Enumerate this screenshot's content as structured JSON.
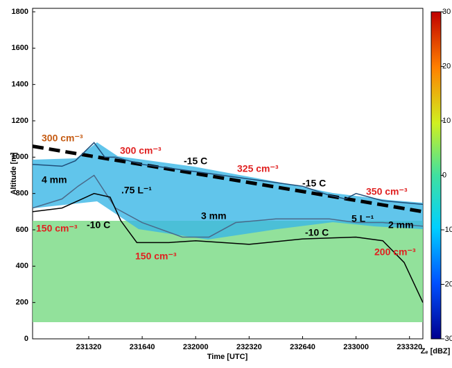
{
  "chart_data": {
    "type": "line",
    "ylabel": "Altitude [m]",
    "xlabel": "Time [UTC]",
    "ylim": [
      0,
      1800
    ],
    "yticks": [
      0,
      200,
      400,
      600,
      800,
      1000,
      1200,
      1400,
      1600,
      1800
    ],
    "xlim": [
      83390,
      84850
    ],
    "xticks": [
      {
        "value": 83600,
        "label": "231320"
      },
      {
        "value": 83800,
        "label": "231640"
      },
      {
        "value": 84000,
        "label": "232000"
      },
      {
        "value": 84200,
        "label": "232320"
      },
      {
        "value": 84400,
        "label": "232640"
      },
      {
        "value": 84600,
        "label": "233000"
      },
      {
        "value": 84800,
        "label": "233320"
      }
    ],
    "series": [
      {
        "color": "#000000",
        "dash": true,
        "x": [
          83390,
          84850
        ],
        "values": [
          1060,
          700
        ]
      },
      {
        "color": "#1f4e79",
        "dash": false,
        "x": [
          83390,
          83500,
          83550,
          83620,
          83660,
          83700,
          83800,
          84000,
          84200,
          84400,
          84500,
          84560,
          84600,
          84700,
          84850
        ],
        "values": [
          960,
          950,
          980,
          1080,
          1000,
          1000,
          960,
          920,
          880,
          840,
          790,
          770,
          800,
          760,
          740
        ]
      },
      {
        "color": "#4a6a8a",
        "dash": false,
        "x": [
          83390,
          83500,
          83560,
          83620,
          83700,
          83800,
          83950,
          84050,
          84150,
          84300,
          84500,
          84600,
          84700,
          84850
        ],
        "values": [
          720,
          770,
          840,
          900,
          720,
          640,
          560,
          560,
          640,
          660,
          660,
          640,
          640,
          620
        ]
      },
      {
        "color": "#000000",
        "dash": false,
        "x": [
          83390,
          83500,
          83560,
          83620,
          83680,
          83720,
          83780,
          83900,
          84000,
          84200,
          84400,
          84600,
          84700,
          84780,
          84850
        ],
        "values": [
          700,
          720,
          760,
          800,
          780,
          650,
          530,
          530,
          540,
          520,
          550,
          560,
          540,
          420,
          200
        ]
      }
    ],
    "colorbar": {
      "label": "Zₑ [dBZ]",
      "lim": [
        -30,
        30
      ],
      "ticks": [
        -30,
        -20,
        -10,
        0,
        10,
        20,
        30
      ]
    },
    "annotations": [
      {
        "text": "300 cm⁻³",
        "color": "#c55a11"
      },
      {
        "text": "300 cm⁻³",
        "color": "#e02020"
      },
      {
        "text": "-15 C",
        "color": "#000000"
      },
      {
        "text": "325 cm⁻³",
        "color": "#e02020"
      },
      {
        "text": "-15 C",
        "color": "#000000"
      },
      {
        "text": "350 cm⁻³",
        "color": "#e02020"
      },
      {
        "text": "4 mm",
        "color": "#000000"
      },
      {
        "text": ".75 L⁻¹",
        "color": "#000000"
      },
      {
        "text": "3 mm",
        "color": "#000000"
      },
      {
        "text": "5 L⁻¹",
        "color": "#000000"
      },
      {
        "text": "2 mm",
        "color": "#000000"
      },
      {
        "text": "150 cm⁻³",
        "color": "#e02020"
      },
      {
        "text": "-10 C",
        "color": "#000000"
      },
      {
        "text": "-10 C",
        "color": "#000000"
      },
      {
        "text": "150 cm⁻³",
        "color": "#e02020"
      },
      {
        "text": "200 cm⁻³",
        "color": "#e02020"
      }
    ]
  }
}
